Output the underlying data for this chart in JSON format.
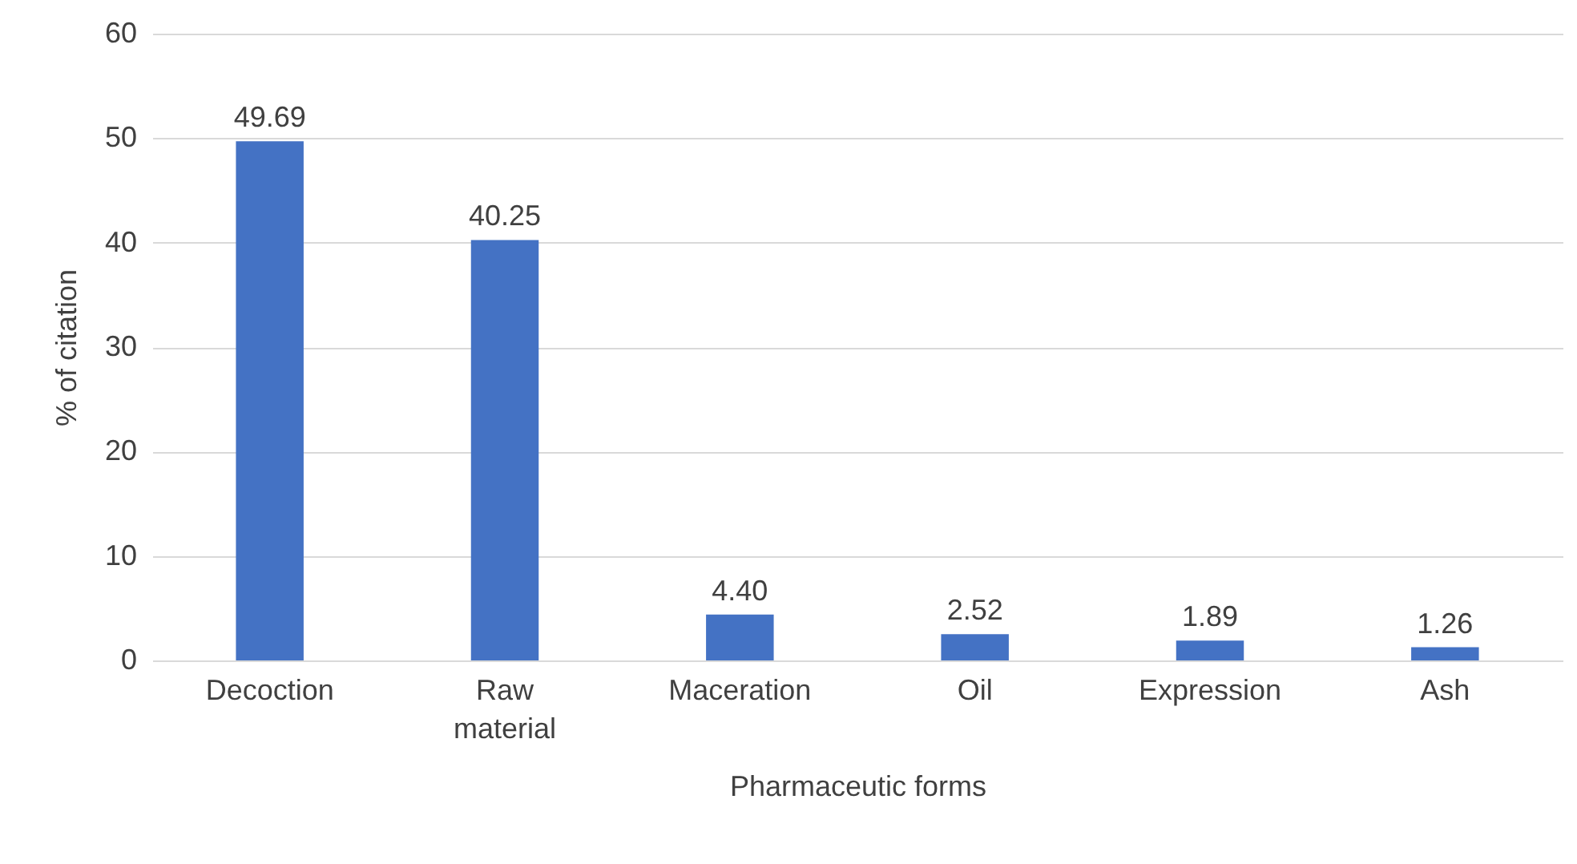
{
  "chart_data": {
    "type": "bar",
    "xlabel": "Pharmaceutic forms",
    "ylabel": "% of citation",
    "categories": [
      "Decoction",
      "Raw material",
      "Maceration",
      "Oil",
      "Expression",
      "Ash"
    ],
    "values": [
      49.69,
      40.25,
      4.4,
      2.52,
      1.89,
      1.26
    ],
    "value_labels": [
      "49.69",
      "40.25",
      "4.40",
      "2.52",
      "1.89",
      "1.26"
    ],
    "color": "#4472c4",
    "ylim": [
      0,
      60
    ],
    "yticks": [
      0,
      10,
      20,
      30,
      40,
      50,
      60
    ],
    "grid": "y"
  }
}
